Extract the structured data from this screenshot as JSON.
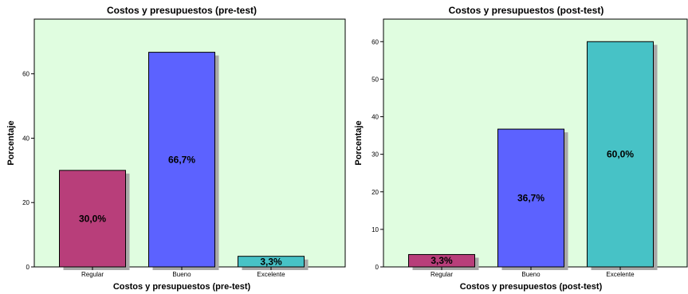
{
  "colors": {
    "plot_background": "#e0fde0",
    "shadow": "#a8a8a8",
    "bar_outline": "#000000",
    "category_colors": {
      "Regular": "#b83e7a",
      "Bueno": "#5c62ff",
      "Excelente": "#47c2c6"
    }
  },
  "chart_data": [
    {
      "type": "bar",
      "title": "Costos y presupuestos (pre-test)",
      "xlabel": "Costos y presupuestos (pre-test)",
      "ylabel": "Porcentaje",
      "categories": [
        "Regular",
        "Bueno",
        "Excelente"
      ],
      "values": [
        30.0,
        66.7,
        3.3
      ],
      "data_labels": [
        "30,0%",
        "66,7%",
        "3,3%"
      ],
      "yticks": [
        0,
        20,
        40,
        60
      ],
      "ylim": [
        0,
        77
      ],
      "grid": false,
      "legend": "none"
    },
    {
      "type": "bar",
      "title": "Costos y presupuestos (post-test)",
      "xlabel": "Costos y presupuestos (post-test)",
      "ylabel": "Porcentaje",
      "categories": [
        "Regular",
        "Bueno",
        "Excelente"
      ],
      "values": [
        3.3,
        36.7,
        60.0
      ],
      "data_labels": [
        "3,3%",
        "36,7%",
        "60,0%"
      ],
      "yticks": [
        0,
        10,
        20,
        30,
        40,
        50,
        60
      ],
      "ylim": [
        0,
        66
      ],
      "grid": false,
      "legend": "none"
    }
  ]
}
